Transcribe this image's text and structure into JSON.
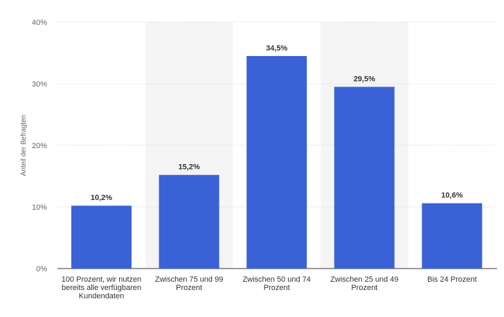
{
  "chart_data": {
    "type": "bar",
    "categories": [
      "100 Prozent, wir nutzen bereits alle verfügbaren Kundendaten",
      "Zwischen 75 und 99 Prozent",
      "Zwischen 50 und 74 Prozent",
      "Zwischen 25 und 49 Prozent",
      "Bis 24 Prozent"
    ],
    "values": [
      10.2,
      15.2,
      34.5,
      29.5,
      10.6
    ],
    "value_labels": [
      "10,2%",
      "15,2%",
      "34,5%",
      "29,5%",
      "10,6%"
    ],
    "ylabel": "Anteil der Befragten",
    "ylim": [
      0,
      40
    ],
    "yticks": [
      0,
      10,
      20,
      30,
      40
    ],
    "ytick_labels": [
      "0%",
      "10%",
      "20%",
      "30%",
      "40%"
    ],
    "grid": true,
    "colors": {
      "bar": "#3A62D6",
      "alt_band": "#F5F5F5",
      "grid": "#CCCCCC",
      "axis": "#333333"
    }
  }
}
